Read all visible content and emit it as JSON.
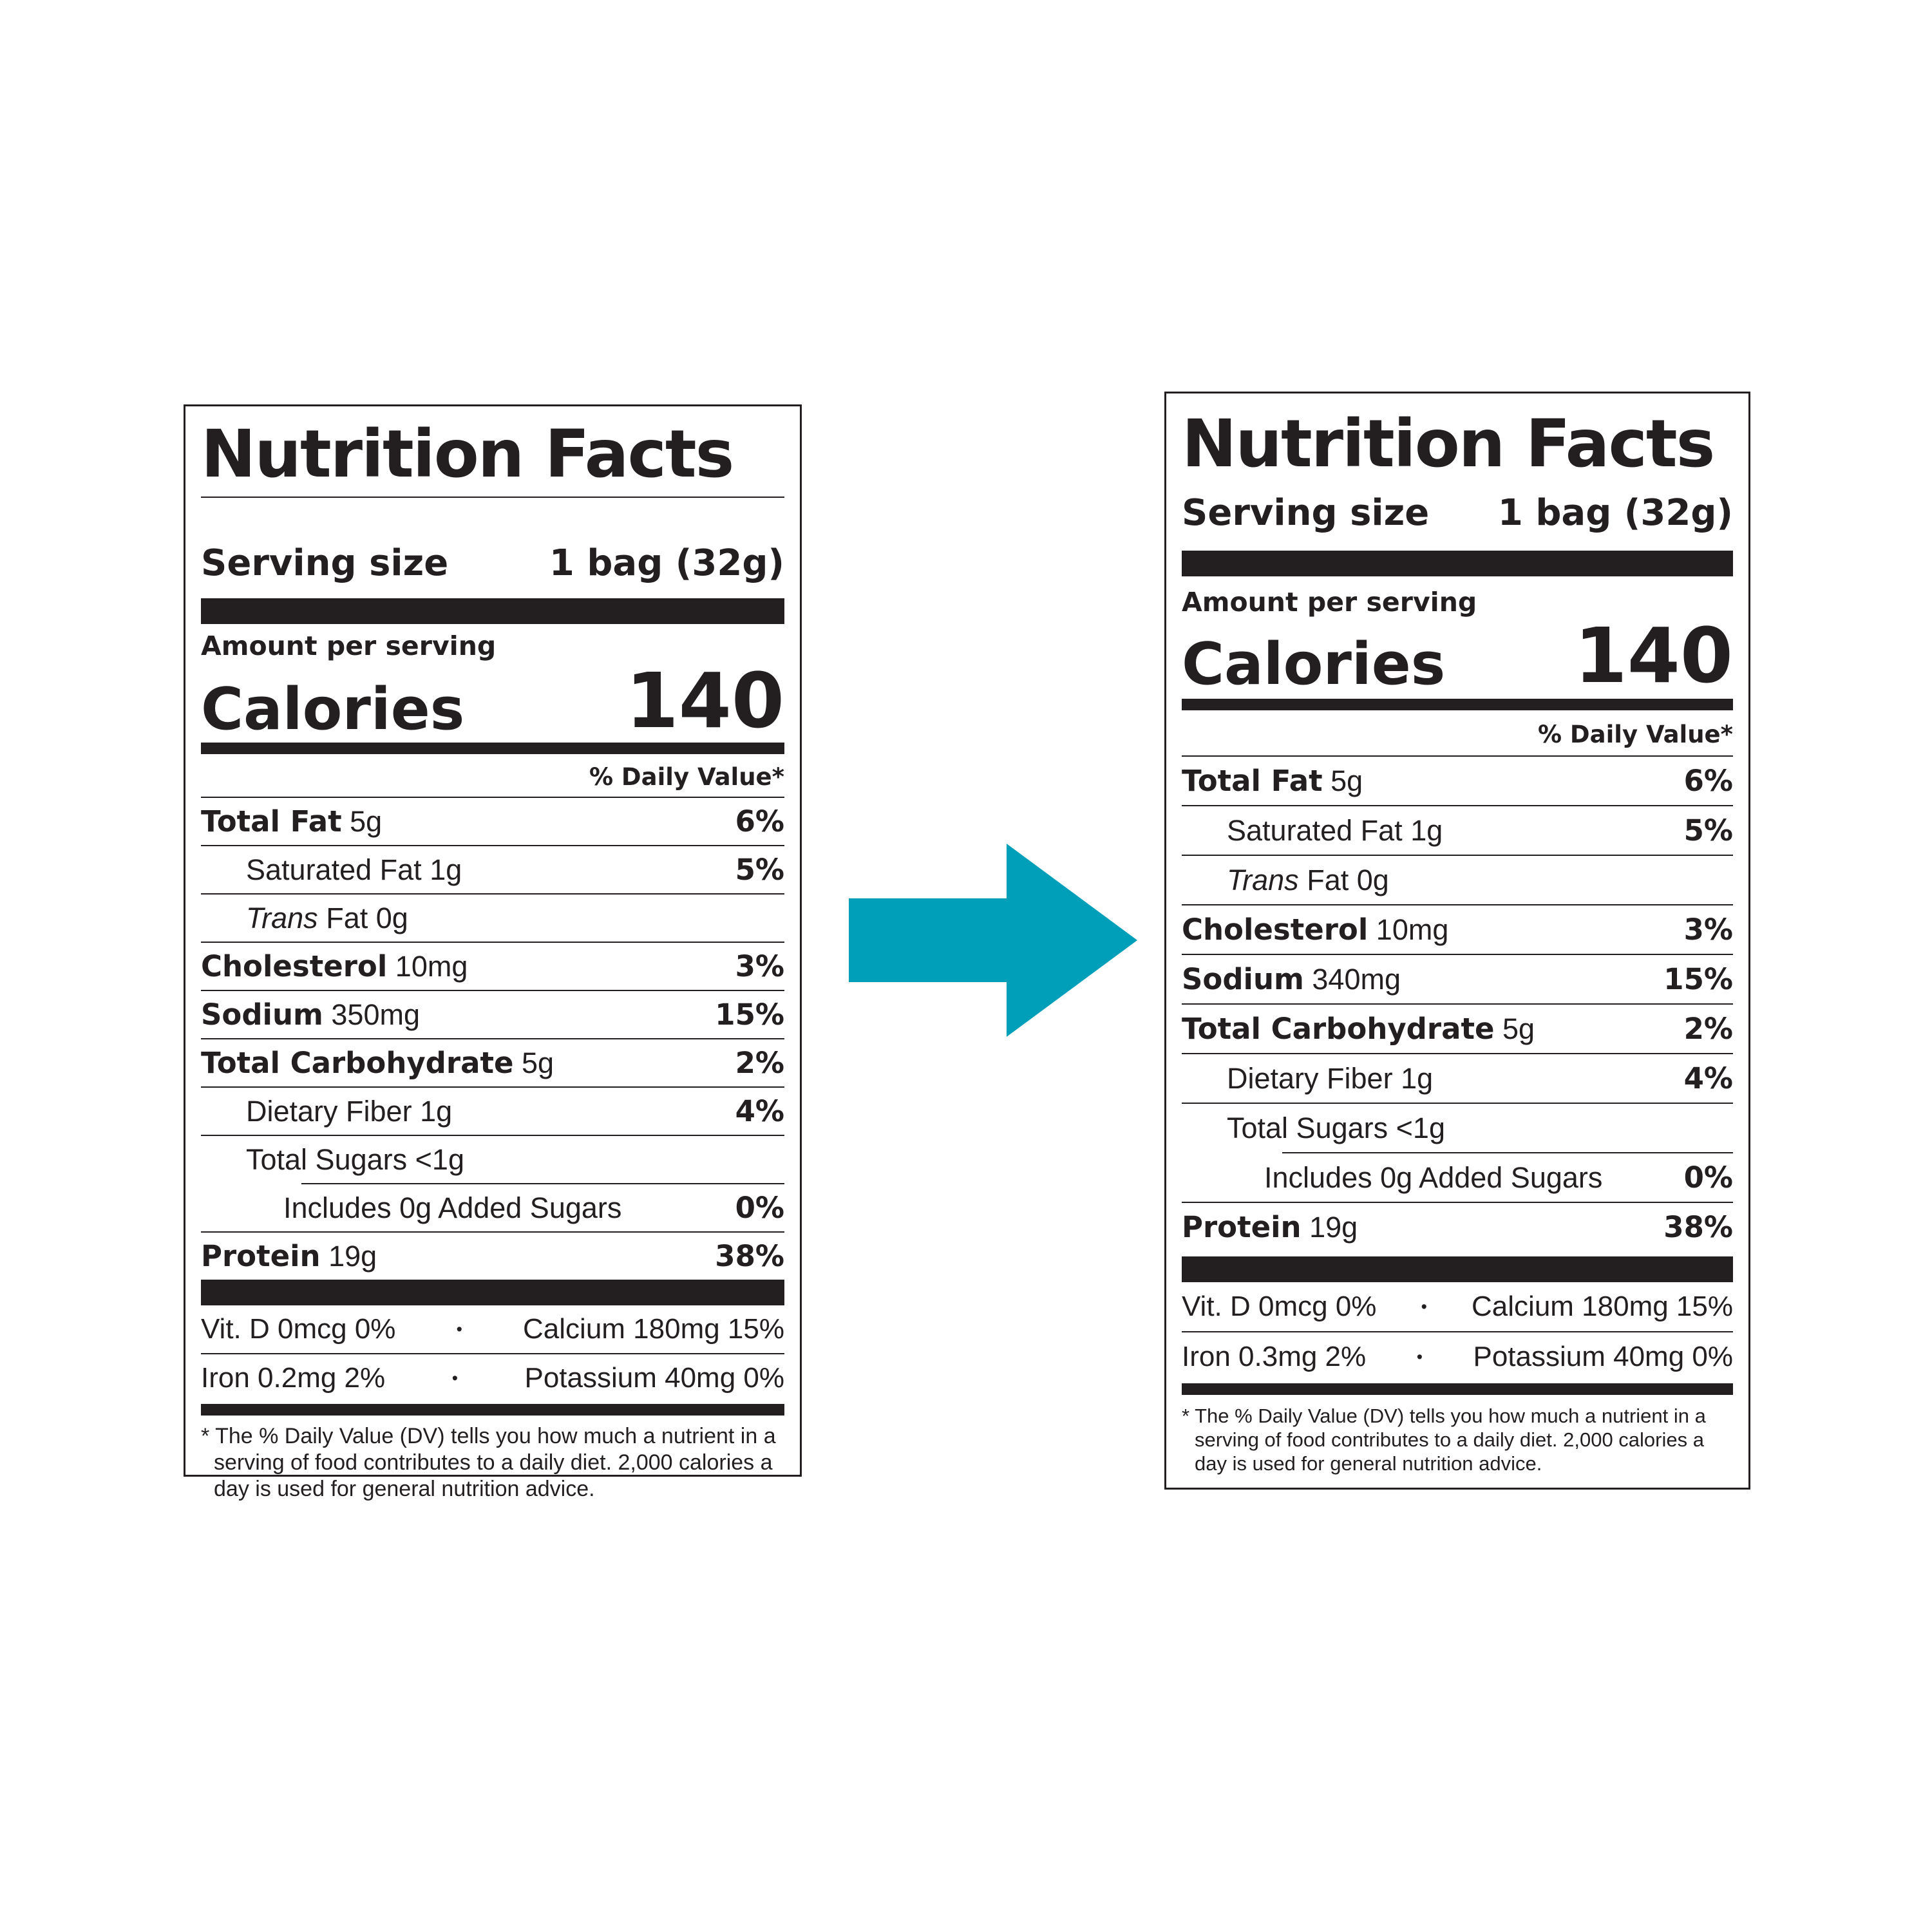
{
  "arrow": {
    "color": "#009fb9"
  },
  "labels": {
    "left": {
      "title": "Nutrition Facts",
      "serving_label": "Serving size",
      "serving_value": "1 bag (32g)",
      "amount_per_serving": "Amount per serving",
      "calories_label": "Calories",
      "calories_value": "140",
      "daily_value_header": "% Daily Value*",
      "nutrients": [
        {
          "name": "Total Fat",
          "amount": "5g",
          "dv": "6%"
        },
        {
          "name": "Saturated Fat",
          "amount": "1g",
          "dv": "5%"
        },
        {
          "name_italic": "Trans",
          "name": "Fat",
          "amount": "0g",
          "dv": ""
        },
        {
          "name": "Cholesterol",
          "amount": "10mg",
          "dv": "3%"
        },
        {
          "name": "Sodium",
          "amount": "350mg",
          "dv": "15%"
        },
        {
          "name": "Total Carbohydrate",
          "amount": "5g",
          "dv": "2%"
        },
        {
          "name": "Dietary Fiber",
          "amount": "1g",
          "dv": "4%"
        },
        {
          "name": "Total Sugars",
          "amount": "<1g",
          "dv": ""
        },
        {
          "name": "Includes 0g Added Sugars",
          "amount": "",
          "dv": "0%"
        },
        {
          "name": "Protein",
          "amount": "19g",
          "dv": "38%"
        }
      ],
      "vitamins": [
        {
          "left": "Vit. D 0mcg 0%",
          "right": "Calcium 180mg 15%"
        },
        {
          "left": "Iron 0.2mg 2%",
          "right": "Potassium 40mg 0%"
        }
      ],
      "bullet": "•",
      "footnote": "* The % Daily Value (DV) tells you how much a nutrient in a serving of food contributes to a daily diet. 2,000 calories a day is used for general nutrition advice."
    },
    "right": {
      "title": "Nutrition Facts",
      "serving_label": "Serving size",
      "serving_value": "1 bag (32g)",
      "amount_per_serving": "Amount per serving",
      "calories_label": "Calories",
      "calories_value": "140",
      "daily_value_header": "% Daily Value*",
      "nutrients": [
        {
          "name": "Total Fat",
          "amount": "5g",
          "dv": "6%"
        },
        {
          "name": "Saturated Fat",
          "amount": "1g",
          "dv": "5%"
        },
        {
          "name_italic": "Trans",
          "name": "Fat",
          "amount": "0g",
          "dv": ""
        },
        {
          "name": "Cholesterol",
          "amount": "10mg",
          "dv": "3%"
        },
        {
          "name": "Sodium",
          "amount": "340mg",
          "dv": "15%"
        },
        {
          "name": "Total Carbohydrate",
          "amount": "5g",
          "dv": "2%"
        },
        {
          "name": "Dietary Fiber",
          "amount": "1g",
          "dv": "4%"
        },
        {
          "name": "Total Sugars",
          "amount": "<1g",
          "dv": ""
        },
        {
          "name": "Includes 0g Added Sugars",
          "amount": "",
          "dv": "0%"
        },
        {
          "name": "Protein",
          "amount": "19g",
          "dv": "38%"
        }
      ],
      "vitamins": [
        {
          "left": "Vit. D 0mcg 0%",
          "right": "Calcium 180mg 15%"
        },
        {
          "left": "Iron 0.3mg 2%",
          "right": "Potassium 40mg 0%"
        }
      ],
      "bullet": "•",
      "footnote": "* The % Daily Value (DV) tells you how much a nutrient in a serving of food contributes to a daily diet. 2,000 calories a day is used for general nutrition advice."
    }
  }
}
